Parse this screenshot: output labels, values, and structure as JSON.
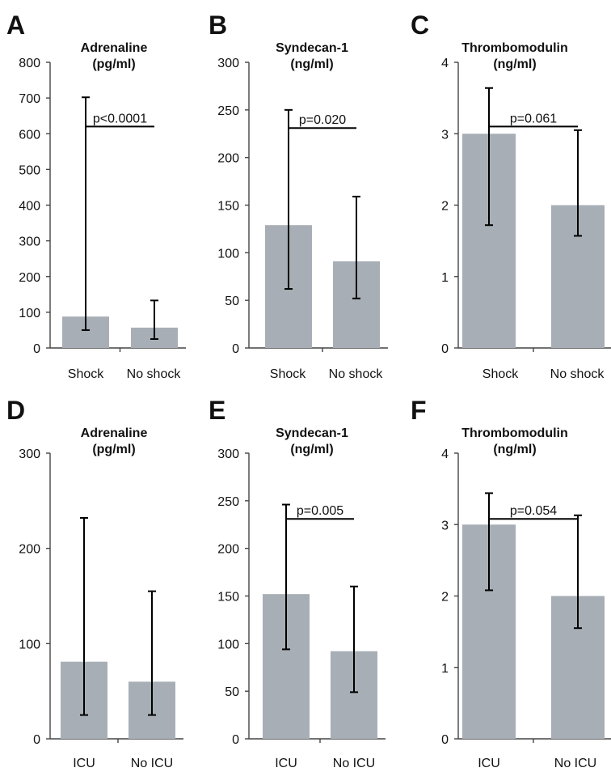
{
  "chart_data": [
    {
      "panel": "A",
      "type": "bar",
      "title": [
        "Adrenaline",
        "(pg/ml)"
      ],
      "categories": [
        "Shock",
        "No shock"
      ],
      "values": [
        88,
        57
      ],
      "error_low": [
        50,
        25
      ],
      "error_high": [
        702,
        133
      ],
      "ylim": [
        0,
        800
      ],
      "yticks": [
        0,
        100,
        200,
        300,
        400,
        500,
        600,
        700,
        800
      ],
      "pvalue": {
        "label": "p<0.0001",
        "y": 620
      },
      "colors": {
        "bar": "#a7aeb6"
      }
    },
    {
      "panel": "B",
      "type": "bar",
      "title": [
        "Syndecan-1",
        "(ng/ml)"
      ],
      "categories": [
        "Shock",
        "No shock"
      ],
      "values": [
        129,
        91
      ],
      "error_low": [
        62,
        52
      ],
      "error_high": [
        250,
        159
      ],
      "ylim": [
        0,
        300
      ],
      "yticks": [
        0,
        50,
        100,
        150,
        200,
        250,
        300
      ],
      "pvalue": {
        "label": "p=0.020",
        "y": 231
      },
      "colors": {
        "bar": "#a7aeb6"
      }
    },
    {
      "panel": "C",
      "type": "bar",
      "title": [
        "Thrombomodulin",
        "(ng/ml)"
      ],
      "categories": [
        "Shock",
        "No shock"
      ],
      "values": [
        3.0,
        2.0
      ],
      "error_low": [
        1.72,
        1.57
      ],
      "error_high": [
        3.64,
        3.05
      ],
      "ylim": [
        0,
        4
      ],
      "yticks": [
        0,
        1,
        2,
        3,
        4
      ],
      "pvalue": {
        "label": "p=0.061",
        "y": 3.1
      },
      "colors": {
        "bar": "#a7aeb6"
      }
    },
    {
      "panel": "D",
      "type": "bar",
      "title": [
        "Adrenaline",
        "(pg/ml)"
      ],
      "categories": [
        "ICU",
        "No ICU"
      ],
      "values": [
        81,
        60
      ],
      "error_low": [
        25,
        25
      ],
      "error_high": [
        232,
        155
      ],
      "ylim": [
        0,
        300
      ],
      "yticks": [
        0,
        100,
        200,
        300
      ],
      "pvalue": null,
      "colors": {
        "bar": "#a7aeb6"
      }
    },
    {
      "panel": "E",
      "type": "bar",
      "title": [
        "Syndecan-1",
        "(ng/ml)"
      ],
      "categories": [
        "ICU",
        "No ICU"
      ],
      "values": [
        152,
        92
      ],
      "error_low": [
        94,
        49
      ],
      "error_high": [
        246,
        160
      ],
      "ylim": [
        0,
        300
      ],
      "yticks": [
        0,
        50,
        100,
        150,
        200,
        250,
        300
      ],
      "pvalue": {
        "label": "p=0.005",
        "y": 231
      },
      "colors": {
        "bar": "#a7aeb6"
      }
    },
    {
      "panel": "F",
      "type": "bar",
      "title": [
        "Thrombomodulin",
        "(ng/ml)"
      ],
      "categories": [
        "ICU",
        "No ICU"
      ],
      "values": [
        3.0,
        2.0
      ],
      "error_low": [
        2.08,
        1.55
      ],
      "error_high": [
        3.44,
        3.13
      ],
      "ylim": [
        0,
        4
      ],
      "yticks": [
        0,
        1,
        2,
        3,
        4
      ],
      "pvalue": {
        "label": "p=0.054",
        "y": 3.08
      },
      "colors": {
        "bar": "#a7aeb6"
      }
    }
  ]
}
